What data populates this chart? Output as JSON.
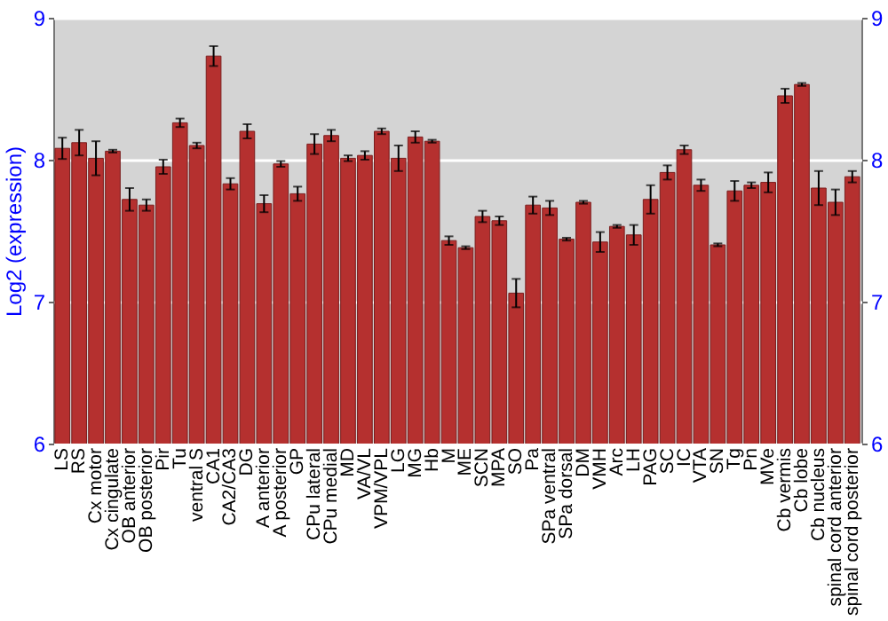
{
  "chart_data": {
    "type": "bar",
    "ylabel": "Log2 (expression)",
    "categories": [
      "LS",
      "RS",
      "Cx motor",
      "Cx cingulate",
      "OB anterior",
      "OB posterior",
      "Pir",
      "Tu",
      "ventral S",
      "CA1",
      "CA2/CA3",
      "DG",
      "A anterior",
      "A posterior",
      "GP",
      "CPu lateral",
      "CPu medial",
      "MD",
      "VA/VL",
      "VPM/VPL",
      "LG",
      "MG",
      "Hb",
      "M",
      "ME",
      "SCN",
      "MPA",
      "SO",
      "Pa",
      "SPa ventral",
      "SPa dorsal",
      "DM",
      "VMH",
      "Arc",
      "LH",
      "PAG",
      "SC",
      "IC",
      "VTA",
      "SN",
      "Tg",
      "Pn",
      "MVe",
      "Cb vermis",
      "Cb lobe",
      "Cb nucleus",
      "spinal cord anterior",
      "spinal cord posterior"
    ],
    "values": [
      8.08,
      8.12,
      8.01,
      8.06,
      7.72,
      7.68,
      7.95,
      8.26,
      8.1,
      8.73,
      7.83,
      8.2,
      7.69,
      7.97,
      7.76,
      8.11,
      8.17,
      8.01,
      8.03,
      8.2,
      8.01,
      8.16,
      8.13,
      7.43,
      7.38,
      7.6,
      7.57,
      7.06,
      7.68,
      7.66,
      7.44,
      7.7,
      7.42,
      7.53,
      7.47,
      7.72,
      7.91,
      8.07,
      7.82,
      7.4,
      7.78,
      7.82,
      7.84,
      8.45,
      8.53,
      7.8,
      7.7,
      7.88
    ],
    "errors": [
      0.075,
      0.09,
      0.12,
      0.01,
      0.08,
      0.04,
      0.05,
      0.03,
      0.02,
      0.07,
      0.04,
      0.05,
      0.06,
      0.02,
      0.05,
      0.07,
      0.04,
      0.02,
      0.03,
      0.02,
      0.09,
      0.04,
      0.01,
      0.03,
      0.01,
      0.04,
      0.03,
      0.1,
      0.06,
      0.05,
      0.01,
      0.01,
      0.07,
      0.01,
      0.07,
      0.1,
      0.05,
      0.03,
      0.04,
      0.01,
      0.07,
      0.02,
      0.07,
      0.05,
      0.01,
      0.12,
      0.09,
      0.04
    ],
    "color": "#b5302f",
    "ylim": [
      6,
      9
    ],
    "yticks": [
      6,
      7,
      8,
      9
    ],
    "y2lim": [
      6,
      9
    ],
    "y2ticks": [
      6,
      7,
      8,
      9
    ],
    "grid": "y"
  }
}
